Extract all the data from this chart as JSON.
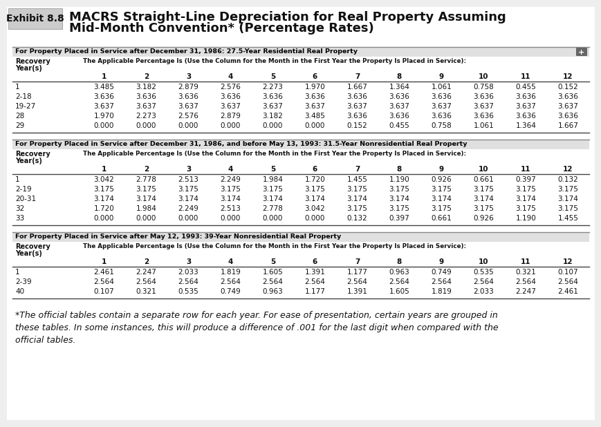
{
  "title_exhibit": "Exhibit 8.8",
  "title_line1": "MACRS Straight-Line Depreciation for Real Property Assuming",
  "title_line2": "Mid-Month Convention* (Percentage Rates)",
  "bg_color": "#f0f0f0",
  "content_bg": "#ffffff",
  "footnote_lines": [
    "*The official tables contain a separate row for each year. For ease of presentation, certain years are grouped in",
    "these tables. In some instances, this will produce a difference of .001 for the last digit when compared with the",
    "official tables."
  ],
  "table1": {
    "section_label": "For Property Placed in Service after December 31, 1986: 27.5-Year Residential Real Property",
    "has_plus_btn": true,
    "col_header": [
      "1",
      "2",
      "3",
      "4",
      "5",
      "6",
      "7",
      "8",
      "9",
      "10",
      "11",
      "12"
    ],
    "rows": [
      [
        "1",
        "3.485",
        "3.182",
        "2.879",
        "2.576",
        "2.273",
        "1.970",
        "1.667",
        "1.364",
        "1.061",
        "0.758",
        "0.455",
        "0.152"
      ],
      [
        "2-18",
        "3.636",
        "3.636",
        "3.636",
        "3.636",
        "3.636",
        "3.636",
        "3.636",
        "3.636",
        "3.636",
        "3.636",
        "3.636",
        "3.636"
      ],
      [
        "19-27",
        "3.637",
        "3.637",
        "3.637",
        "3.637",
        "3.637",
        "3.637",
        "3.637",
        "3.637",
        "3.637",
        "3.637",
        "3.637",
        "3.637"
      ],
      [
        "28",
        "1.970",
        "2.273",
        "2.576",
        "2.879",
        "3.182",
        "3.485",
        "3.636",
        "3.636",
        "3.636",
        "3.636",
        "3.636",
        "3.636"
      ],
      [
        "29",
        "0.000",
        "0.000",
        "0.000",
        "0.000",
        "0.000",
        "0.000",
        "0.152",
        "0.455",
        "0.758",
        "1.061",
        "1.364",
        "1.667"
      ]
    ]
  },
  "table2": {
    "section_label": "For Property Placed in Service after December 31, 1986, and before May 13, 1993: 31.5-Year Nonresidential Real Property",
    "has_plus_btn": false,
    "col_header": [
      "1",
      "2",
      "3",
      "4",
      "5",
      "6",
      "7",
      "8",
      "9",
      "10",
      "11",
      "12"
    ],
    "rows": [
      [
        "1",
        "3.042",
        "2.778",
        "2.513",
        "2.249",
        "1.984",
        "1.720",
        "1.455",
        "1.190",
        "0.926",
        "0.661",
        "0.397",
        "0.132"
      ],
      [
        "2-19",
        "3.175",
        "3.175",
        "3.175",
        "3.175",
        "3.175",
        "3.175",
        "3.175",
        "3.175",
        "3.175",
        "3.175",
        "3.175",
        "3.175"
      ],
      [
        "20-31",
        "3.174",
        "3.174",
        "3.174",
        "3.174",
        "3.174",
        "3.174",
        "3.174",
        "3.174",
        "3.174",
        "3.174",
        "3.174",
        "3.174"
      ],
      [
        "32",
        "1.720",
        "1.984",
        "2.249",
        "2.513",
        "2.778",
        "3.042",
        "3.175",
        "3.175",
        "3.175",
        "3.175",
        "3.175",
        "3.175"
      ],
      [
        "33",
        "0.000",
        "0.000",
        "0.000",
        "0.000",
        "0.000",
        "0.000",
        "0.132",
        "0.397",
        "0.661",
        "0.926",
        "1.190",
        "1.455"
      ]
    ]
  },
  "table3": {
    "section_label": "For Property Placed in Service after May 12, 1993: 39-Year Nonresidential Real Property",
    "has_plus_btn": false,
    "col_header": [
      "1",
      "2",
      "3",
      "4",
      "5",
      "6",
      "7",
      "8",
      "9",
      "10",
      "11",
      "12"
    ],
    "rows": [
      [
        "1",
        "2.461",
        "2.247",
        "2.033",
        "1.819",
        "1.605",
        "1.391",
        "1.177",
        "0.963",
        "0.749",
        "0.535",
        "0.321",
        "0.107"
      ],
      [
        "2-39",
        "2.564",
        "2.564",
        "2.564",
        "2.564",
        "2.564",
        "2.564",
        "2.564",
        "2.564",
        "2.564",
        "2.564",
        "2.564",
        "2.564"
      ],
      [
        "40",
        "0.107",
        "0.321",
        "0.535",
        "0.749",
        "0.963",
        "1.177",
        "1.391",
        "1.605",
        "1.819",
        "2.033",
        "2.247",
        "2.461"
      ]
    ]
  }
}
